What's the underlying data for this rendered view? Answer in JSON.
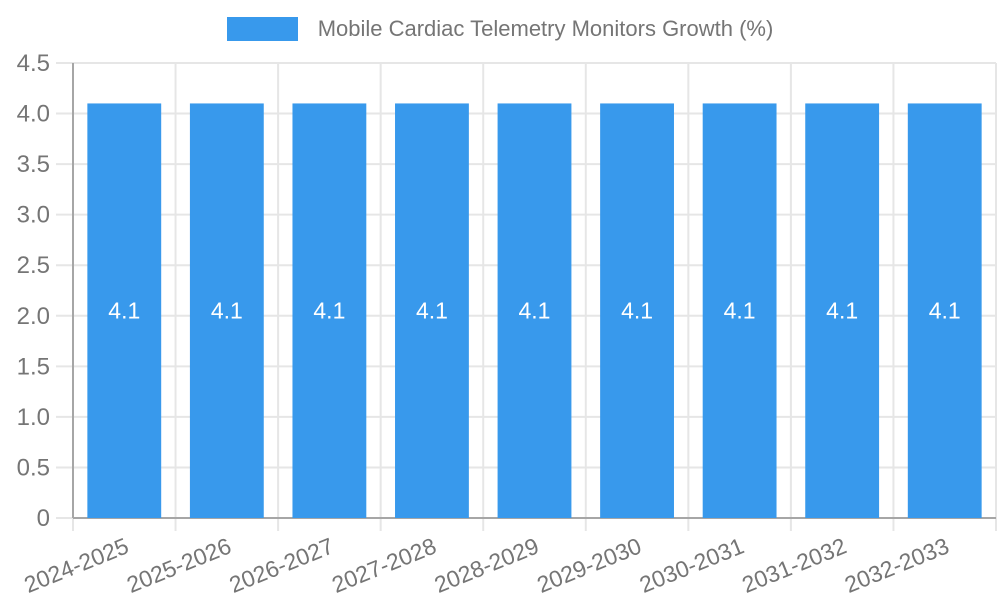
{
  "colors": {
    "bar": "#3899ec",
    "bar_label": "#ffffff",
    "axis_text": "#757575",
    "grid": "#e6e6e6",
    "axis_line": "#a6a6a6",
    "background": "#ffffff"
  },
  "legend": {
    "label": "Mobile Cardiac Telemetry Monitors Growth (%)"
  },
  "chart_data": {
    "type": "bar",
    "title": "Mobile Cardiac Telemetry Monitors Growth (%)",
    "categories": [
      "2024-2025",
      "2025-2026",
      "2026-2027",
      "2027-2028",
      "2028-2029",
      "2029-2030",
      "2030-2031",
      "2031-2032",
      "2032-2033"
    ],
    "values": [
      4.1,
      4.1,
      4.1,
      4.1,
      4.1,
      4.1,
      4.1,
      4.1,
      4.1
    ],
    "bar_labels": [
      "4.1",
      "4.1",
      "4.1",
      "4.1",
      "4.1",
      "4.1",
      "4.1",
      "4.1",
      "4.1"
    ],
    "xlabel": "",
    "ylabel": "",
    "ylim": [
      0,
      4.5
    ],
    "ytick_step": 0.5,
    "ytick_labels": [
      "0",
      "0.5",
      "1.0",
      "1.5",
      "2.0",
      "2.5",
      "3.0",
      "3.5",
      "4.0",
      "4.5"
    ],
    "grid": true,
    "legend_position": "top"
  }
}
